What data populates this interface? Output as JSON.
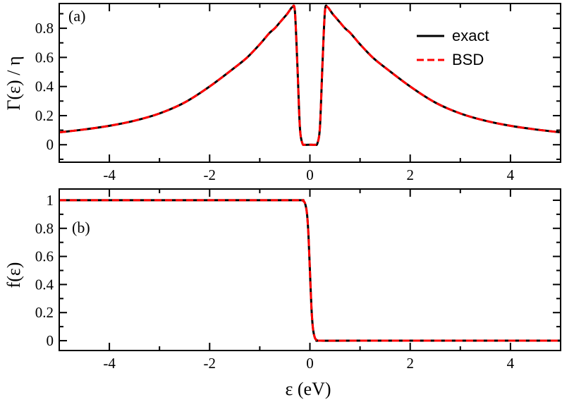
{
  "chart_data": [
    {
      "type": "line",
      "panel_label": "(a)",
      "ylabel": "Γ(ε) / η",
      "xlabel": "",
      "xlim": [
        -5,
        5
      ],
      "ylim": [
        -0.12,
        0.97
      ],
      "xticks": [
        "-4",
        "-2",
        "0",
        "2",
        "4"
      ],
      "yticks": [
        "0",
        "0.2",
        "0.4",
        "0.6",
        "0.8"
      ],
      "legend": {
        "placement": "top-right",
        "entries": [
          "exact",
          "BSD"
        ]
      },
      "x": [
        -5,
        -4.5,
        -4,
        -3.5,
        -3,
        -2.5,
        -2,
        -1.5,
        -1.25,
        -1,
        -0.9,
        -0.8,
        -0.7,
        -0.6,
        -0.5,
        -0.45,
        -0.4,
        -0.35,
        -0.3,
        -0.25,
        -0.2,
        -0.15,
        -0.1,
        0,
        0.1,
        0.15,
        0.2,
        0.25,
        0.3,
        0.35,
        0.4,
        0.45,
        0.5,
        0.6,
        0.7,
        0.8,
        0.9,
        1,
        1.25,
        1.5,
        2,
        2.5,
        3,
        3.5,
        4,
        4.5,
        5
      ],
      "series": [
        {
          "name": "exact",
          "color": "#000000",
          "style": "solid",
          "values": [
            0.085,
            0.105,
            0.13,
            0.165,
            0.215,
            0.29,
            0.4,
            0.53,
            0.6,
            0.69,
            0.73,
            0.77,
            0.8,
            0.84,
            0.88,
            0.9,
            0.925,
            0.945,
            0.92,
            0.55,
            0.12,
            0.01,
            0.0,
            0.0,
            0.0,
            0.01,
            0.12,
            0.55,
            0.92,
            0.945,
            0.925,
            0.9,
            0.88,
            0.84,
            0.8,
            0.77,
            0.73,
            0.69,
            0.6,
            0.53,
            0.4,
            0.29,
            0.215,
            0.165,
            0.13,
            0.105,
            0.085
          ]
        },
        {
          "name": "BSD",
          "color": "#ff0000",
          "style": "dashed",
          "values": [
            0.085,
            0.105,
            0.13,
            0.165,
            0.215,
            0.29,
            0.4,
            0.53,
            0.6,
            0.69,
            0.73,
            0.77,
            0.8,
            0.84,
            0.88,
            0.9,
            0.925,
            0.945,
            0.92,
            0.55,
            0.12,
            0.01,
            0.0,
            0.0,
            0.0,
            0.01,
            0.12,
            0.55,
            0.92,
            0.945,
            0.925,
            0.9,
            0.88,
            0.84,
            0.8,
            0.77,
            0.73,
            0.69,
            0.6,
            0.53,
            0.4,
            0.29,
            0.215,
            0.165,
            0.13,
            0.105,
            0.085
          ]
        }
      ]
    },
    {
      "type": "line",
      "panel_label": "(b)",
      "ylabel": "f(ε)",
      "xlabel": "ε (eV)",
      "xlim": [
        -5,
        5
      ],
      "ylim": [
        -0.07,
        1.08
      ],
      "xticks": [
        "-4",
        "-2",
        "0",
        "2",
        "4"
      ],
      "yticks": [
        "0",
        "0.2",
        "0.4",
        "0.6",
        "0.8",
        "1"
      ],
      "x": [
        -5,
        -1,
        -0.2,
        -0.15,
        -0.1,
        -0.06,
        -0.03,
        0,
        0.03,
        0.06,
        0.1,
        0.15,
        0.2,
        1,
        5
      ],
      "series": [
        {
          "name": "exact",
          "color": "#000000",
          "style": "solid",
          "values": [
            1,
            1,
            1,
            0.999,
            0.98,
            0.91,
            0.76,
            0.5,
            0.24,
            0.09,
            0.02,
            0.001,
            0,
            0,
            0
          ]
        },
        {
          "name": "BSD",
          "color": "#ff0000",
          "style": "dashed",
          "values": [
            1,
            1,
            1,
            0.999,
            0.98,
            0.91,
            0.76,
            0.5,
            0.24,
            0.09,
            0.02,
            0.001,
            0,
            0,
            0
          ]
        }
      ]
    }
  ]
}
